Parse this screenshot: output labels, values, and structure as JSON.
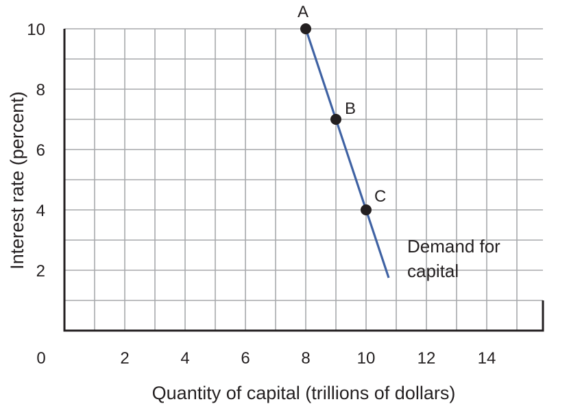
{
  "chart_data": {
    "type": "line",
    "title": "",
    "xlabel": "Quantity of capital (trillions of dollars)",
    "ylabel": "Interest rate (percent)",
    "xlim": [
      0,
      16
    ],
    "ylim": [
      0,
      10
    ],
    "x_ticks": [
      0,
      2,
      4,
      6,
      8,
      10,
      12,
      14
    ],
    "y_ticks": [
      2,
      4,
      6,
      8,
      10
    ],
    "grid": true,
    "series": [
      {
        "label": "Demand for capital",
        "label_lines": [
          "Demand for",
          "capital"
        ],
        "color": "#3f62a3",
        "x": [
          8,
          10.75
        ],
        "y": [
          10,
          1.75
        ]
      }
    ],
    "points": [
      {
        "label": "A",
        "x": 8,
        "y": 10
      },
      {
        "label": "B",
        "x": 9,
        "y": 7
      },
      {
        "label": "C",
        "x": 10,
        "y": 4
      }
    ],
    "colors": {
      "grid": "#a7a9ac",
      "axis": "#231f20",
      "line": "#3f62a3",
      "point": "#231f20"
    }
  }
}
